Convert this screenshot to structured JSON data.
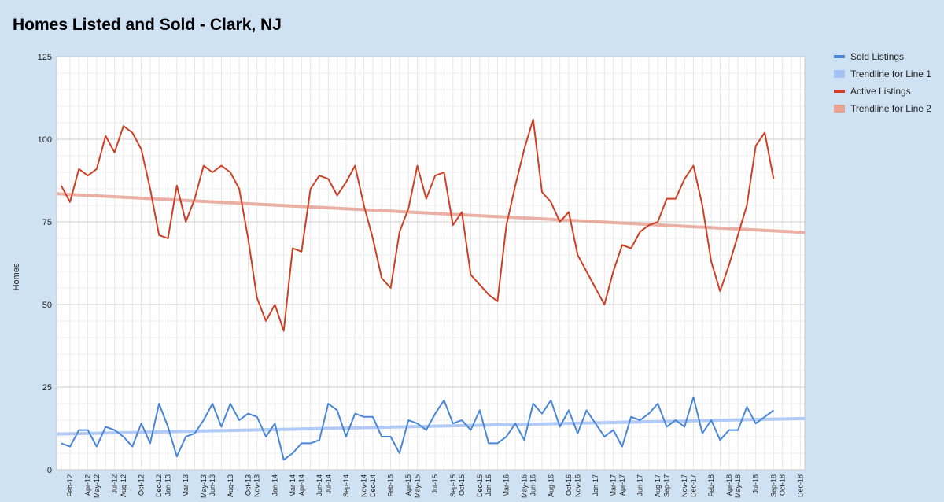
{
  "chart_data": {
    "type": "line",
    "title": "Homes Listed and Sold - Clark, NJ",
    "xlabel": "",
    "ylabel": "Homes",
    "ylim": [
      0,
      125
    ],
    "yticks": [
      0,
      25,
      50,
      75,
      100,
      125
    ],
    "grid": true,
    "legend_position": "right",
    "x_start": "Jan-12",
    "x_end": "Dec-18",
    "xticks": [
      "Feb-12",
      "Apr-12",
      "May-12",
      "Jul-12",
      "Aug-12",
      "Oct-12",
      "Dec-12",
      "Jan-13",
      "Mar-13",
      "May-13",
      "Jun-13",
      "Aug-13",
      "Oct-13",
      "Nov-13",
      "Jan-14",
      "Mar-14",
      "Apr-14",
      "Jun-14",
      "Jul-14",
      "Sep-14",
      "Nov-14",
      "Dec-14",
      "Feb-15",
      "Apr-15",
      "May-15",
      "Jul-15",
      "Sep-15",
      "Oct-15",
      "Dec-15",
      "Jan-16",
      "Mar-16",
      "May-16",
      "Jun-16",
      "Aug-16",
      "Oct-16",
      "Nov-16",
      "Jan-17",
      "Mar-17",
      "Apr-17",
      "Jun-17",
      "Aug-17",
      "Sep-17",
      "Nov-17",
      "Dec-17",
      "Feb-18",
      "Apr-18",
      "May-18",
      "Jul-18",
      "Sep-18",
      "Oct-18",
      "Dec-18"
    ],
    "series": [
      {
        "name": "Sold Listings",
        "color": "#4a86d8",
        "values": [
          8,
          7,
          12,
          12,
          7,
          13,
          12,
          10,
          7,
          14,
          8,
          20,
          13,
          4,
          10,
          11,
          15,
          20,
          13,
          20,
          15,
          17,
          16,
          10,
          14,
          3,
          5,
          8,
          8,
          9,
          20,
          18,
          10,
          17,
          16,
          16,
          10,
          10,
          5,
          15,
          14,
          12,
          17,
          21,
          14,
          15,
          12,
          18,
          8,
          8,
          10,
          14,
          9,
          20,
          17,
          21,
          13,
          18,
          11,
          18,
          14,
          10,
          12,
          7,
          16,
          15,
          17,
          20,
          13,
          15,
          13,
          22,
          11,
          15,
          9,
          12,
          12,
          19,
          14,
          16,
          18
        ]
      },
      {
        "name": "Trendline for Line 1",
        "color": "#a4c2f4",
        "trend": [
          10.8,
          15.5
        ]
      },
      {
        "name": "Active Listings",
        "color": "#cc4125",
        "values": [
          86,
          81,
          91,
          89,
          91,
          101,
          96,
          104,
          102,
          97,
          85,
          71,
          70,
          86,
          75,
          82,
          92,
          90,
          92,
          90,
          85,
          70,
          52,
          45,
          50,
          42,
          67,
          66,
          85,
          89,
          88,
          83,
          87,
          92,
          80,
          70,
          58,
          55,
          72,
          79,
          92,
          82,
          89,
          90,
          74,
          78,
          59,
          56,
          53,
          51,
          74,
          86,
          97,
          106,
          84,
          81,
          75,
          78,
          65,
          60,
          55,
          50,
          60,
          68,
          67,
          72,
          74,
          75,
          82,
          82,
          88,
          92,
          80,
          63,
          54,
          62,
          71,
          80,
          98,
          102,
          88
        ]
      },
      {
        "name": "Trendline for Line 2",
        "color": "#e6a295",
        "trend": [
          83.5,
          71.8
        ]
      }
    ]
  }
}
